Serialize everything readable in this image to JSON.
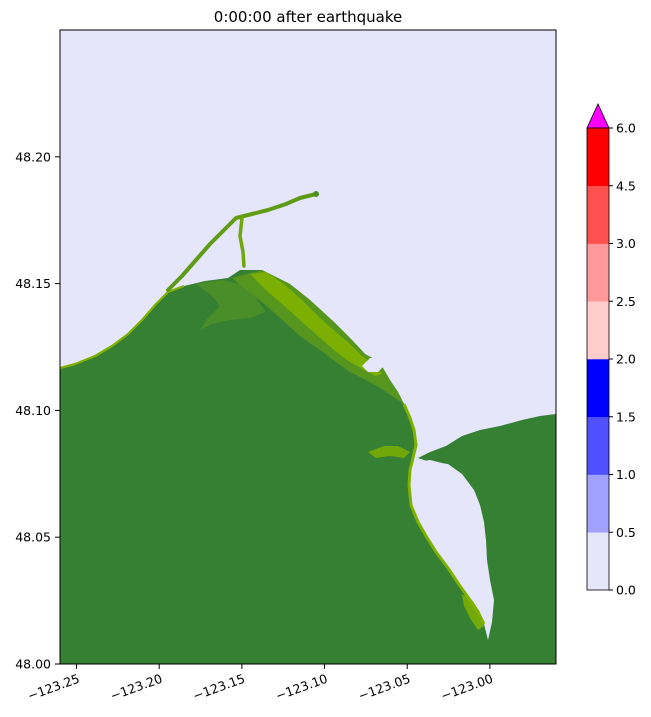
{
  "chart_data": {
    "type": "heatmap",
    "title": "0:00:00 after earthquake",
    "xlabel": "",
    "ylabel": "",
    "xlim": [
      -123.26,
      -122.96
    ],
    "ylim": [
      48.0,
      48.25
    ],
    "x_ticks": [
      {
        "value": -123.25,
        "label": "−123.25"
      },
      {
        "value": -123.2,
        "label": "−123.20"
      },
      {
        "value": -123.15,
        "label": "−123.15"
      },
      {
        "value": -123.1,
        "label": "−123.10"
      },
      {
        "value": -123.05,
        "label": "−123.05"
      },
      {
        "value": -123.0,
        "label": "−123.00"
      }
    ],
    "y_ticks": [
      {
        "value": 48.0,
        "label": "48.00"
      },
      {
        "value": 48.05,
        "label": "48.05"
      },
      {
        "value": 48.1,
        "label": "48.10"
      },
      {
        "value": 48.15,
        "label": "48.15"
      },
      {
        "value": 48.2,
        "label": "48.20"
      }
    ],
    "grid": false,
    "colorbar": {
      "bounds": [
        0.0,
        0.5,
        1.0,
        1.5,
        2.0,
        2.5,
        3.0,
        4.5,
        6.0
      ],
      "tick_labels": [
        "0.0",
        "0.5",
        "1.0",
        "1.5",
        "2.0",
        "2.5",
        "3.0",
        "4.5",
        "6.0"
      ],
      "colors": [
        "#e6e6fa",
        "#a0a0ff",
        "#5050ff",
        "#0000ff",
        "#ffcccc",
        "#ff9999",
        "#ff5050",
        "#ff0000"
      ],
      "extend_max_color": "#ff00ff"
    },
    "colors": {
      "water": "#e6e6fa",
      "land_dark": "#358033",
      "land_mid": "#5c9a1c",
      "land_light": "#7fb200"
    }
  }
}
